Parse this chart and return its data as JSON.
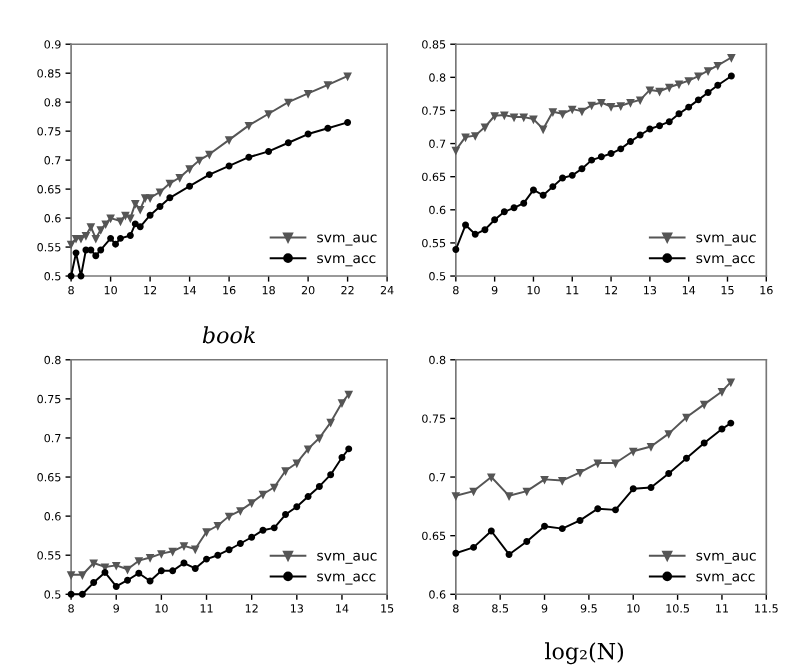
{
  "chart_data": [
    {
      "type": "line",
      "xlim": [
        8,
        24
      ],
      "xticks": [
        8,
        10,
        12,
        14,
        16,
        18,
        20,
        22,
        24
      ],
      "ylim": [
        0.5,
        0.9
      ],
      "yticks": [
        0.5,
        0.55,
        0.6,
        0.65,
        0.7,
        0.75,
        0.8,
        0.85,
        0.9
      ],
      "legend": "bottom right",
      "grid": false,
      "series": [
        {
          "name": "svm_auc",
          "color": "#555555",
          "marker": "triangle",
          "x": [
            8,
            8.25,
            8.5,
            8.75,
            9,
            9.25,
            9.5,
            9.75,
            10,
            10.5,
            10.75,
            11,
            11.25,
            11.5,
            11.75,
            12,
            12.5,
            13,
            13.5,
            14,
            14.5,
            15,
            16,
            17,
            18,
            19,
            20,
            21,
            22
          ],
          "values": [
            0.555,
            0.565,
            0.565,
            0.57,
            0.585,
            0.565,
            0.58,
            0.59,
            0.6,
            0.595,
            0.605,
            0.6,
            0.625,
            0.615,
            0.635,
            0.635,
            0.645,
            0.66,
            0.67,
            0.685,
            0.7,
            0.71,
            0.735,
            0.76,
            0.78,
            0.8,
            0.815,
            0.83,
            0.845
          ]
        },
        {
          "name": "svm_acc",
          "color": "#000000",
          "marker": "circle",
          "x": [
            8,
            8.25,
            8.5,
            8.75,
            9,
            9.25,
            9.5,
            10,
            10.25,
            10.5,
            11,
            11.25,
            11.5,
            12,
            12.5,
            13,
            14,
            15,
            16,
            17,
            18,
            19,
            20,
            21,
            22
          ],
          "values": [
            0.5,
            0.54,
            0.5,
            0.545,
            0.545,
            0.535,
            0.545,
            0.565,
            0.555,
            0.565,
            0.57,
            0.59,
            0.585,
            0.605,
            0.62,
            0.635,
            0.655,
            0.675,
            0.69,
            0.705,
            0.715,
            0.73,
            0.745,
            0.755,
            0.765
          ]
        }
      ]
    },
    {
      "type": "line",
      "xlim": [
        8,
        16
      ],
      "xticks": [
        8,
        9,
        10,
        11,
        12,
        13,
        14,
        15,
        16
      ],
      "ylim": [
        0.5,
        0.85
      ],
      "yticks": [
        0.5,
        0.55,
        0.6,
        0.65,
        0.7,
        0.75,
        0.8,
        0.85
      ],
      "legend": "bottom right",
      "grid": false,
      "series": [
        {
          "name": "svm_auc",
          "color": "#555555",
          "marker": "triangle",
          "x": [
            8,
            8.25,
            8.5,
            8.75,
            9,
            9.25,
            9.5,
            9.75,
            10,
            10.25,
            10.5,
            10.75,
            11,
            11.25,
            11.5,
            11.75,
            12,
            12.25,
            12.5,
            12.75,
            13,
            13.25,
            13.5,
            13.75,
            14,
            14.25,
            14.5,
            14.75,
            15.1
          ],
          "values": [
            0.69,
            0.71,
            0.712,
            0.725,
            0.742,
            0.743,
            0.74,
            0.74,
            0.737,
            0.722,
            0.748,
            0.745,
            0.752,
            0.749,
            0.758,
            0.762,
            0.756,
            0.757,
            0.762,
            0.766,
            0.781,
            0.779,
            0.785,
            0.79,
            0.795,
            0.802,
            0.81,
            0.818,
            0.83
          ]
        },
        {
          "name": "svm_acc",
          "color": "#000000",
          "marker": "circle",
          "x": [
            8,
            8.25,
            8.5,
            8.75,
            9,
            9.25,
            9.5,
            9.75,
            10,
            10.25,
            10.5,
            10.75,
            11,
            11.25,
            11.5,
            11.75,
            12,
            12.25,
            12.5,
            12.75,
            13,
            13.25,
            13.5,
            13.75,
            14,
            14.25,
            14.5,
            14.75,
            15.1
          ],
          "values": [
            0.54,
            0.577,
            0.563,
            0.57,
            0.585,
            0.597,
            0.603,
            0.61,
            0.63,
            0.622,
            0.635,
            0.648,
            0.652,
            0.662,
            0.675,
            0.68,
            0.685,
            0.692,
            0.703,
            0.713,
            0.722,
            0.727,
            0.733,
            0.745,
            0.755,
            0.766,
            0.777,
            0.788,
            0.802
          ]
        }
      ]
    },
    {
      "type": "line",
      "title": "book",
      "xlim": [
        8,
        15
      ],
      "xticks": [
        8,
        9,
        10,
        11,
        12,
        13,
        14,
        15
      ],
      "ylim": [
        0.5,
        0.8
      ],
      "yticks": [
        0.5,
        0.55,
        0.6,
        0.65,
        0.7,
        0.75,
        0.8
      ],
      "legend": "bottom right",
      "grid": false,
      "series": [
        {
          "name": "svm_auc",
          "color": "#555555",
          "marker": "triangle",
          "x": [
            8,
            8.25,
            8.5,
            8.75,
            9,
            9.25,
            9.5,
            9.75,
            10,
            10.25,
            10.5,
            10.75,
            11,
            11.25,
            11.5,
            11.75,
            12,
            12.25,
            12.5,
            12.75,
            13,
            13.25,
            13.5,
            13.75,
            14,
            14.15
          ],
          "values": [
            0.525,
            0.525,
            0.54,
            0.535,
            0.537,
            0.532,
            0.543,
            0.547,
            0.552,
            0.555,
            0.562,
            0.558,
            0.58,
            0.588,
            0.6,
            0.607,
            0.617,
            0.628,
            0.637,
            0.658,
            0.668,
            0.686,
            0.7,
            0.72,
            0.745,
            0.756
          ]
        },
        {
          "name": "svm_acc",
          "color": "#000000",
          "marker": "circle",
          "x": [
            8,
            8.25,
            8.5,
            8.75,
            9,
            9.25,
            9.5,
            9.75,
            10,
            10.25,
            10.5,
            10.75,
            11,
            11.25,
            11.5,
            11.75,
            12,
            12.25,
            12.5,
            12.75,
            13,
            13.25,
            13.5,
            13.75,
            14,
            14.15
          ],
          "values": [
            0.5,
            0.5,
            0.515,
            0.528,
            0.51,
            0.518,
            0.527,
            0.517,
            0.53,
            0.53,
            0.54,
            0.533,
            0.545,
            0.55,
            0.557,
            0.565,
            0.573,
            0.582,
            0.585,
            0.602,
            0.612,
            0.625,
            0.638,
            0.653,
            0.675,
            0.686
          ]
        }
      ]
    },
    {
      "type": "line",
      "xlim": [
        8,
        11.5
      ],
      "xticks": [
        8,
        8.5,
        9,
        9.5,
        10,
        10.5,
        11,
        11.5
      ],
      "ylim": [
        0.6,
        0.8
      ],
      "yticks": [
        0.6,
        0.65,
        0.7,
        0.75,
        0.8
      ],
      "legend": "bottom right",
      "grid": false,
      "annotations": [
        "log₂(N)"
      ],
      "series": [
        {
          "name": "svm_auc",
          "color": "#555555",
          "marker": "triangle",
          "x": [
            8,
            8.2,
            8.4,
            8.6,
            8.8,
            9,
            9.2,
            9.4,
            9.6,
            9.8,
            10,
            10.2,
            10.4,
            10.6,
            10.8,
            11,
            11.1
          ],
          "values": [
            0.684,
            0.688,
            0.7,
            0.684,
            0.688,
            0.698,
            0.697,
            0.704,
            0.712,
            0.712,
            0.722,
            0.726,
            0.737,
            0.751,
            0.762,
            0.773,
            0.781
          ]
        },
        {
          "name": "svm_acc",
          "color": "#000000",
          "marker": "circle",
          "x": [
            8,
            8.2,
            8.4,
            8.6,
            8.8,
            9,
            9.2,
            9.4,
            9.6,
            9.8,
            10,
            10.2,
            10.4,
            10.6,
            10.8,
            11,
            11.1
          ],
          "values": [
            0.635,
            0.64,
            0.654,
            0.634,
            0.645,
            0.658,
            0.656,
            0.663,
            0.673,
            0.672,
            0.69,
            0.691,
            0.703,
            0.716,
            0.729,
            0.741,
            0.746
          ]
        }
      ]
    }
  ]
}
